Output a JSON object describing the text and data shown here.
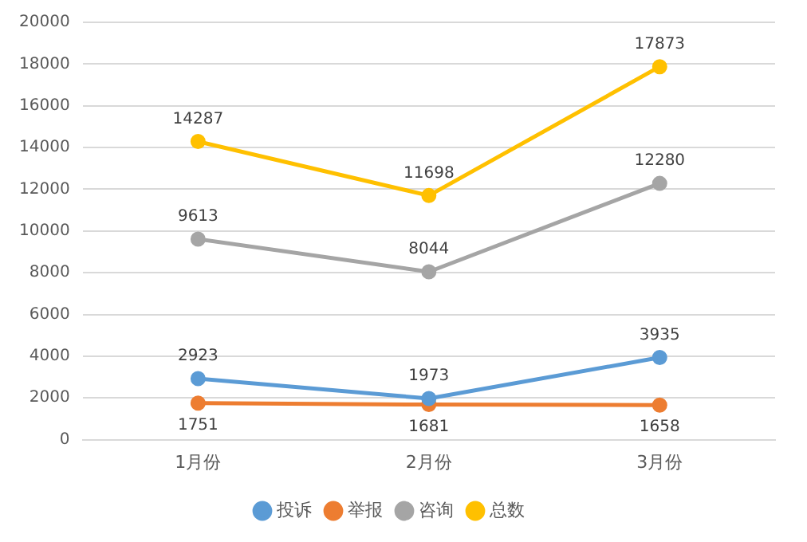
{
  "chart_data": {
    "type": "line",
    "categories": [
      "1月份",
      "2月份",
      "3月份"
    ],
    "series": [
      {
        "name": "投诉",
        "color": "#5b9bd5",
        "values": [
          2923,
          1973,
          3935
        ]
      },
      {
        "name": "举报",
        "color": "#ed7d31",
        "values": [
          1751,
          1681,
          1658
        ]
      },
      {
        "name": "咨询",
        "color": "#a5a5a5",
        "values": [
          9613,
          8044,
          12280
        ]
      },
      {
        "name": "总数",
        "color": "#ffc000",
        "values": [
          14287,
          11698,
          17873
        ]
      }
    ],
    "ylim": [
      0,
      20000
    ],
    "yticks": [
      0,
      2000,
      4000,
      6000,
      8000,
      10000,
      12000,
      14000,
      16000,
      18000,
      20000
    ],
    "grid": "y",
    "legend": "bottom",
    "marker": "circle",
    "line_style": "solid",
    "data_labels": true
  }
}
